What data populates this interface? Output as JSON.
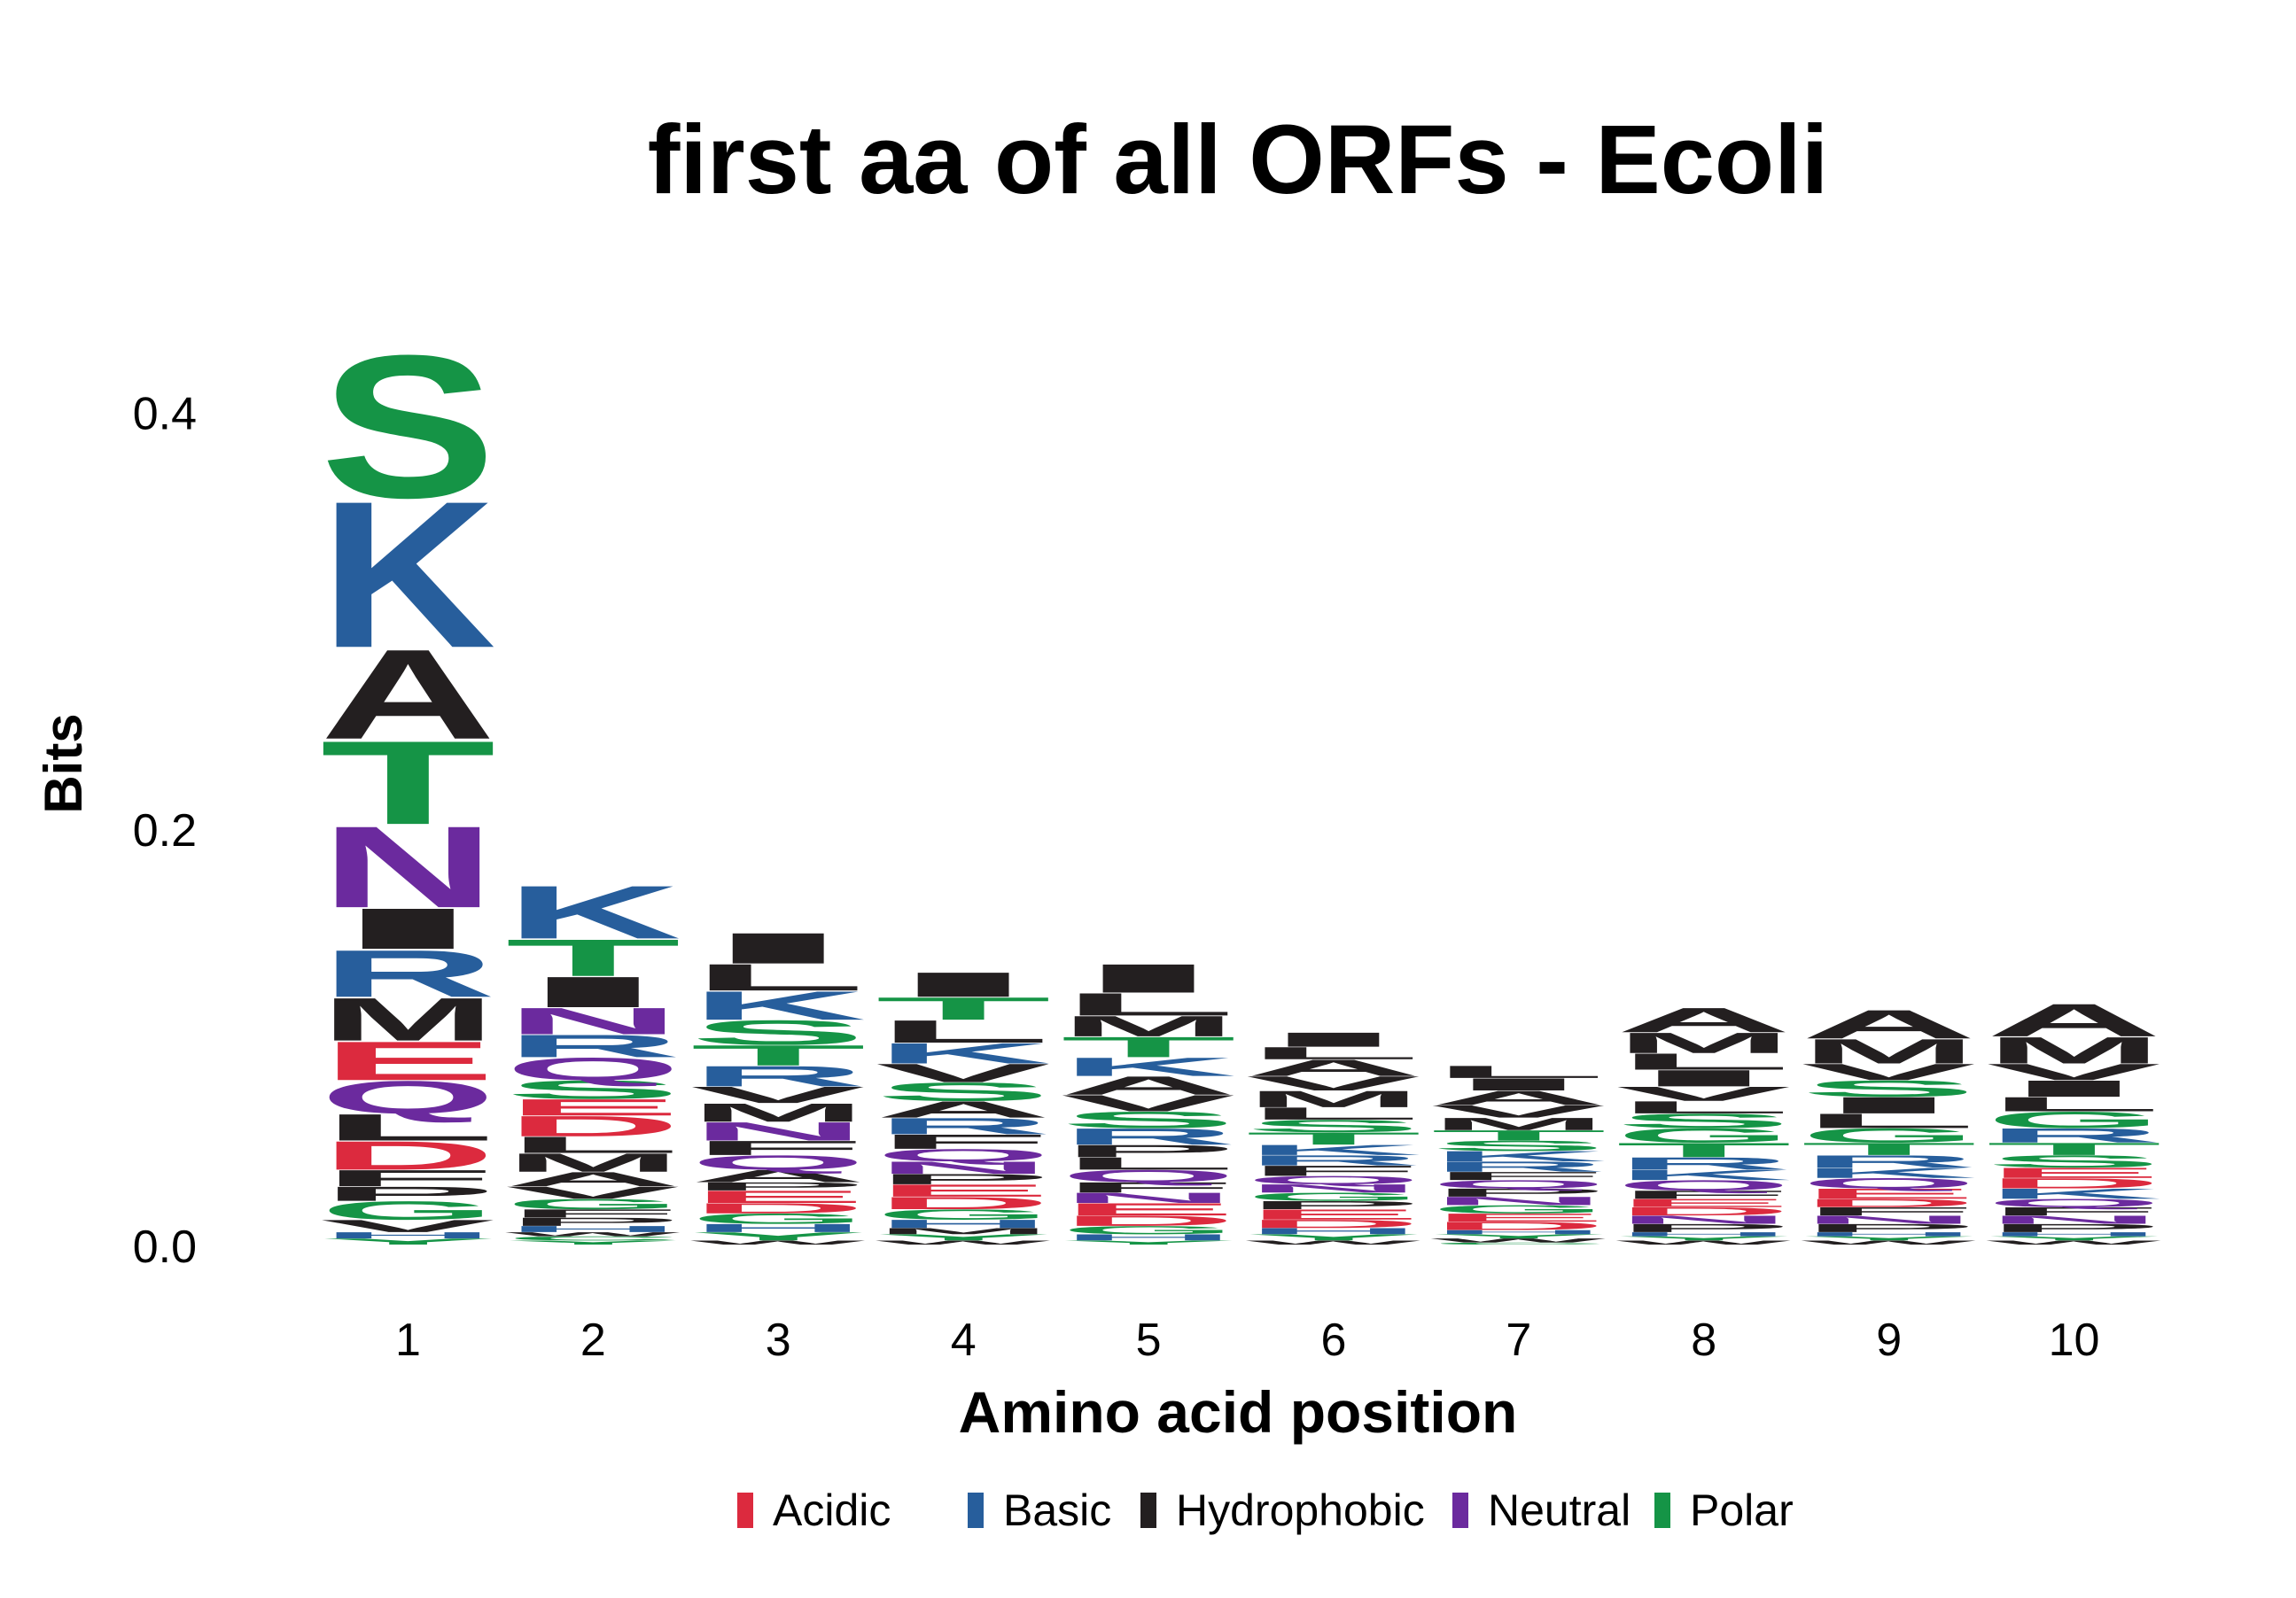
{
  "chart_data": {
    "type": "sequence-logo",
    "title": "first aa of all ORFs - Ecoli",
    "xlabel": "Amino acid position",
    "ylabel": "Bits",
    "ylim": [
      0,
      0.47
    ],
    "yticks": [
      "0.0",
      "0.2",
      "0.4"
    ],
    "positions": [
      "1",
      "2",
      "3",
      "4",
      "5",
      "6",
      "7",
      "8",
      "9",
      "10"
    ],
    "colors": {
      "Acidic": "#DC2A3E",
      "Basic": "#275E9C",
      "Hydrophobic": "#231F20",
      "Neutral": "#6B2A9E",
      "Polar": "#159446"
    },
    "legend": [
      "Acidic",
      "Basic",
      "Hydrophobic",
      "Neutral",
      "Polar"
    ],
    "aa_class": {
      "D": "Acidic",
      "E": "Acidic",
      "K": "Basic",
      "R": "Basic",
      "H": "Basic",
      "A": "Hydrophobic",
      "V": "Hydrophobic",
      "L": "Hydrophobic",
      "I": "Hydrophobic",
      "P": "Hydrophobic",
      "F": "Hydrophobic",
      "W": "Hydrophobic",
      "M": "Hydrophobic",
      "N": "Neutral",
      "Q": "Neutral",
      "S": "Polar",
      "T": "Polar",
      "Y": "Polar",
      "C": "Polar",
      "G": "Polar"
    },
    "stacks": [
      [
        [
          "S",
          0.07
        ],
        [
          "K",
          0.072
        ],
        [
          "A",
          0.044
        ],
        [
          "T",
          0.041
        ],
        [
          "N",
          0.04
        ],
        [
          "I",
          0.02
        ],
        [
          "R",
          0.023
        ],
        [
          "M",
          0.021
        ],
        [
          "E",
          0.019
        ],
        [
          "Q",
          0.016
        ],
        [
          "L",
          0.013
        ],
        [
          "D",
          0.014
        ],
        [
          "F",
          0.008
        ],
        [
          "P",
          0.007
        ],
        [
          "G",
          0.009
        ],
        [
          "V",
          0.006
        ],
        [
          "H",
          0.003
        ],
        [
          "Y",
          0.003
        ]
      ],
      [
        [
          "K",
          0.026
        ],
        [
          "T",
          0.018
        ],
        [
          "I",
          0.015
        ],
        [
          "N",
          0.013
        ],
        [
          "R",
          0.011
        ],
        [
          "Q",
          0.011
        ],
        [
          "S",
          0.009
        ],
        [
          "E",
          0.008
        ],
        [
          "D",
          0.01
        ],
        [
          "L",
          0.008
        ],
        [
          "M",
          0.009
        ],
        [
          "A",
          0.007
        ],
        [
          "V",
          0.006
        ],
        [
          "G",
          0.005
        ],
        [
          "F",
          0.004
        ],
        [
          "P",
          0.004
        ],
        [
          "H",
          0.003
        ],
        [
          "W",
          0.002
        ],
        [
          "C",
          0.002
        ],
        [
          "Y",
          0.002
        ]
      ],
      [
        [
          "I",
          0.015
        ],
        [
          "L",
          0.013
        ],
        [
          "K",
          0.014
        ],
        [
          "S",
          0.012
        ],
        [
          "T",
          0.01
        ],
        [
          "R",
          0.01
        ],
        [
          "V",
          0.008
        ],
        [
          "M",
          0.009
        ],
        [
          "N",
          0.009
        ],
        [
          "F",
          0.007
        ],
        [
          "Q",
          0.007
        ],
        [
          "A",
          0.006
        ],
        [
          "P",
          0.004
        ],
        [
          "E",
          0.006
        ],
        [
          "D",
          0.005
        ],
        [
          "G",
          0.005
        ],
        [
          "H",
          0.004
        ],
        [
          "Y",
          0.004
        ],
        [
          "W",
          0.002
        ]
      ],
      [
        [
          "I",
          0.012
        ],
        [
          "T",
          0.011
        ],
        [
          "L",
          0.011
        ],
        [
          "K",
          0.01
        ],
        [
          "V",
          0.009
        ],
        [
          "S",
          0.009
        ],
        [
          "A",
          0.008
        ],
        [
          "R",
          0.008
        ],
        [
          "F",
          0.007
        ],
        [
          "Q",
          0.006
        ],
        [
          "N",
          0.006
        ],
        [
          "P",
          0.005
        ],
        [
          "E",
          0.006
        ],
        [
          "D",
          0.006
        ],
        [
          "G",
          0.005
        ],
        [
          "H",
          0.004
        ],
        [
          "M",
          0.003
        ],
        [
          "Y",
          0.003
        ],
        [
          "W",
          0.002
        ]
      ],
      [
        [
          "I",
          0.014
        ],
        [
          "L",
          0.011
        ],
        [
          "M",
          0.01
        ],
        [
          "T",
          0.01
        ],
        [
          "K",
          0.009
        ],
        [
          "A",
          0.009
        ],
        [
          "V",
          0.008
        ],
        [
          "S",
          0.008
        ],
        [
          "R",
          0.008
        ],
        [
          "P",
          0.006
        ],
        [
          "L",
          0.006
        ],
        [
          "Q",
          0.006
        ],
        [
          "F",
          0.005
        ],
        [
          "N",
          0.005
        ],
        [
          "E",
          0.006
        ],
        [
          "D",
          0.005
        ],
        [
          "G",
          0.004
        ],
        [
          "H",
          0.003
        ],
        [
          "Y",
          0.002
        ]
      ],
      [
        [
          "I",
          0.007
        ],
        [
          "L",
          0.006
        ],
        [
          "A",
          0.008
        ],
        [
          "V",
          0.007
        ],
        [
          "M",
          0.008
        ],
        [
          "L",
          0.006
        ],
        [
          "S",
          0.006
        ],
        [
          "T",
          0.006
        ],
        [
          "K",
          0.005
        ],
        [
          "R",
          0.005
        ],
        [
          "F",
          0.005
        ],
        [
          "Q",
          0.004
        ],
        [
          "N",
          0.004
        ],
        [
          "G",
          0.004
        ],
        [
          "P",
          0.004
        ],
        [
          "E",
          0.005
        ],
        [
          "D",
          0.004
        ],
        [
          "H",
          0.003
        ],
        [
          "Y",
          0.003
        ],
        [
          "W",
          0.002
        ]
      ],
      [
        [
          "L",
          0.006
        ],
        [
          "I",
          0.006
        ],
        [
          "A",
          0.007
        ],
        [
          "V",
          0.006
        ],
        [
          "M",
          0.006
        ],
        [
          "T",
          0.005
        ],
        [
          "S",
          0.005
        ],
        [
          "K",
          0.005
        ],
        [
          "R",
          0.005
        ],
        [
          "F",
          0.004
        ],
        [
          "Q",
          0.004
        ],
        [
          "P",
          0.004
        ],
        [
          "N",
          0.004
        ],
        [
          "G",
          0.004
        ],
        [
          "E",
          0.004
        ],
        [
          "D",
          0.004
        ],
        [
          "H",
          0.002
        ],
        [
          "Y",
          0.002
        ],
        [
          "W",
          0.002
        ],
        [
          "C",
          0.001
        ]
      ],
      [
        [
          "A",
          0.012
        ],
        [
          "M",
          0.01
        ],
        [
          "L",
          0.008
        ],
        [
          "I",
          0.008
        ],
        [
          "V",
          0.007
        ],
        [
          "L",
          0.006
        ],
        [
          "S",
          0.007
        ],
        [
          "G",
          0.007
        ],
        [
          "T",
          0.007
        ],
        [
          "R",
          0.006
        ],
        [
          "K",
          0.005
        ],
        [
          "Q",
          0.005
        ],
        [
          "F",
          0.004
        ],
        [
          "E",
          0.004
        ],
        [
          "D",
          0.004
        ],
        [
          "N",
          0.004
        ],
        [
          "P",
          0.004
        ],
        [
          "H",
          0.002
        ],
        [
          "Y",
          0.002
        ],
        [
          "W",
          0.002
        ]
      ],
      [
        [
          "A",
          0.014
        ],
        [
          "M",
          0.012
        ],
        [
          "V",
          0.008
        ],
        [
          "S",
          0.008
        ],
        [
          "I",
          0.008
        ],
        [
          "L",
          0.007
        ],
        [
          "G",
          0.007
        ],
        [
          "T",
          0.006
        ],
        [
          "R",
          0.006
        ],
        [
          "K",
          0.005
        ],
        [
          "Q",
          0.005
        ],
        [
          "E",
          0.005
        ],
        [
          "D",
          0.004
        ],
        [
          "F",
          0.004
        ],
        [
          "N",
          0.004
        ],
        [
          "P",
          0.004
        ],
        [
          "H",
          0.002
        ],
        [
          "Y",
          0.002
        ],
        [
          "W",
          0.002
        ]
      ],
      [
        [
          "A",
          0.016
        ],
        [
          "M",
          0.013
        ],
        [
          "V",
          0.008
        ],
        [
          "I",
          0.008
        ],
        [
          "L",
          0.007
        ],
        [
          "G",
          0.008
        ],
        [
          "R",
          0.007
        ],
        [
          "T",
          0.006
        ],
        [
          "S",
          0.006
        ],
        [
          "E",
          0.005
        ],
        [
          "D",
          0.005
        ],
        [
          "K",
          0.005
        ],
        [
          "Q",
          0.004
        ],
        [
          "F",
          0.004
        ],
        [
          "N",
          0.004
        ],
        [
          "P",
          0.004
        ],
        [
          "H",
          0.002
        ],
        [
          "Y",
          0.002
        ],
        [
          "W",
          0.002
        ]
      ]
    ]
  }
}
